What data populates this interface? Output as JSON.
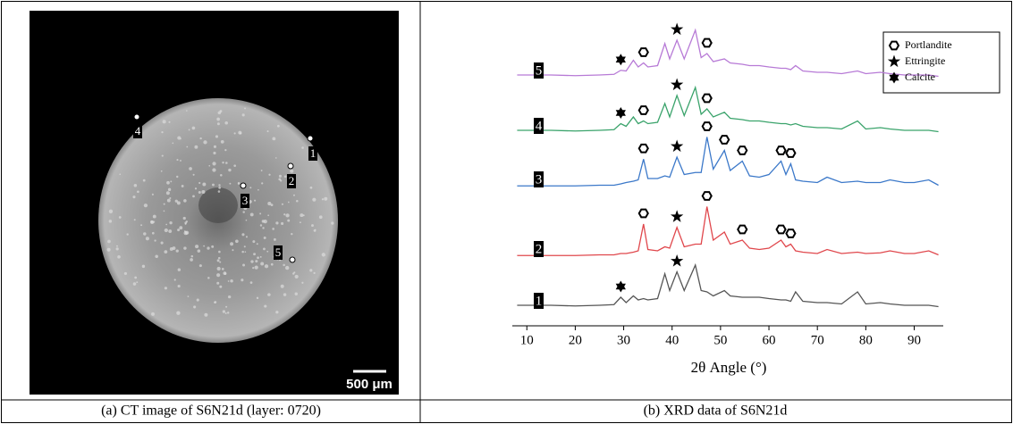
{
  "ct_image": {
    "points": [
      "1",
      "2",
      "3",
      "4",
      "5"
    ],
    "scale_bar": "500 μm"
  },
  "captions": [
    "(a) CT image of S6N21d (layer: 0720)",
    "(b) XRD data of S6N21d"
  ],
  "chart_data": {
    "type": "line",
    "x_label": "2θ Angle (°)",
    "xlim": [
      7,
      96
    ],
    "xticks": [
      10,
      20,
      30,
      40,
      50,
      60,
      70,
      80,
      90
    ],
    "x": [
      8,
      15,
      20,
      25,
      28,
      29.4,
      30.5,
      32,
      33,
      34.1,
      35,
      37,
      38.5,
      39.5,
      41,
      42.5,
      44.8,
      46,
      47.2,
      48.5,
      50.8,
      52,
      54.5,
      56,
      58,
      60,
      62.5,
      63.5,
      64.5,
      65.5,
      67,
      70,
      72,
      75,
      78.3,
      80,
      83,
      85,
      88,
      90,
      93,
      95
    ],
    "phases": [
      {
        "name": "Portlandite",
        "symbol": "hexagon"
      },
      {
        "name": "Ettringite",
        "symbol": "star"
      },
      {
        "name": "Calcite",
        "symbol": "hexstar"
      }
    ],
    "series": [
      {
        "name": "1",
        "color": "#555555",
        "values": [
          8,
          8,
          7,
          8,
          9,
          20,
          12,
          22,
          16,
          18,
          16,
          18,
          55,
          30,
          58,
          30,
          68,
          30,
          28,
          22,
          30,
          22,
          20,
          20,
          20,
          18,
          16,
          16,
          14,
          28,
          14,
          12,
          12,
          10,
          28,
          10,
          12,
          10,
          8,
          8,
          8,
          6
        ],
        "peaks": [
          [],
          [
            41
          ],
          [
            29.4
          ]
        ]
      },
      {
        "name": "2",
        "color": "#e0474c",
        "values": [
          5,
          5,
          5,
          6,
          6,
          8,
          8,
          10,
          12,
          52,
          14,
          12,
          18,
          16,
          47,
          18,
          22,
          22,
          78,
          28,
          40,
          22,
          28,
          16,
          14,
          16,
          28,
          18,
          22,
          12,
          10,
          8,
          14,
          8,
          10,
          8,
          9,
          12,
          8,
          8,
          12,
          6
        ],
        "peaks": [
          [
            34.1,
            47.2,
            54.5,
            62.5,
            64.5
          ],
          [
            41
          ],
          []
        ]
      },
      {
        "name": "3",
        "color": "#3b78c9",
        "values": [
          5,
          5,
          5,
          6,
          6,
          8,
          10,
          12,
          14,
          45,
          16,
          16,
          20,
          18,
          48,
          22,
          25,
          25,
          78,
          30,
          58,
          28,
          42,
          20,
          18,
          22,
          42,
          22,
          38,
          14,
          12,
          10,
          18,
          10,
          12,
          10,
          10,
          14,
          10,
          10,
          14,
          6
        ],
        "peaks": [
          [
            34.1,
            47.2,
            50.8,
            54.5,
            62.5,
            64.5
          ],
          [
            41
          ],
          []
        ]
      },
      {
        "name": "4",
        "color": "#3aa36b",
        "values": [
          8,
          8,
          7,
          8,
          9,
          18,
          14,
          28,
          18,
          22,
          18,
          20,
          48,
          28,
          60,
          30,
          72,
          32,
          40,
          28,
          35,
          26,
          24,
          22,
          22,
          20,
          18,
          18,
          16,
          18,
          14,
          12,
          12,
          10,
          22,
          10,
          12,
          10,
          8,
          8,
          8,
          6
        ],
        "peaks": [
          [
            34.1,
            47.2
          ],
          [
            41
          ],
          [
            29.4
          ]
        ]
      },
      {
        "name": "5",
        "color": "#b77ad6",
        "values": [
          8,
          8,
          7,
          8,
          9,
          15,
          14,
          30,
          20,
          26,
          20,
          22,
          55,
          32,
          60,
          32,
          75,
          34,
          40,
          28,
          32,
          26,
          24,
          22,
          22,
          20,
          18,
          18,
          16,
          22,
          14,
          12,
          12,
          10,
          14,
          10,
          12,
          10,
          8,
          8,
          8,
          6
        ],
        "peaks": [
          [
            34.1,
            47.2
          ],
          [
            41
          ],
          [
            29.4
          ]
        ]
      }
    ]
  }
}
